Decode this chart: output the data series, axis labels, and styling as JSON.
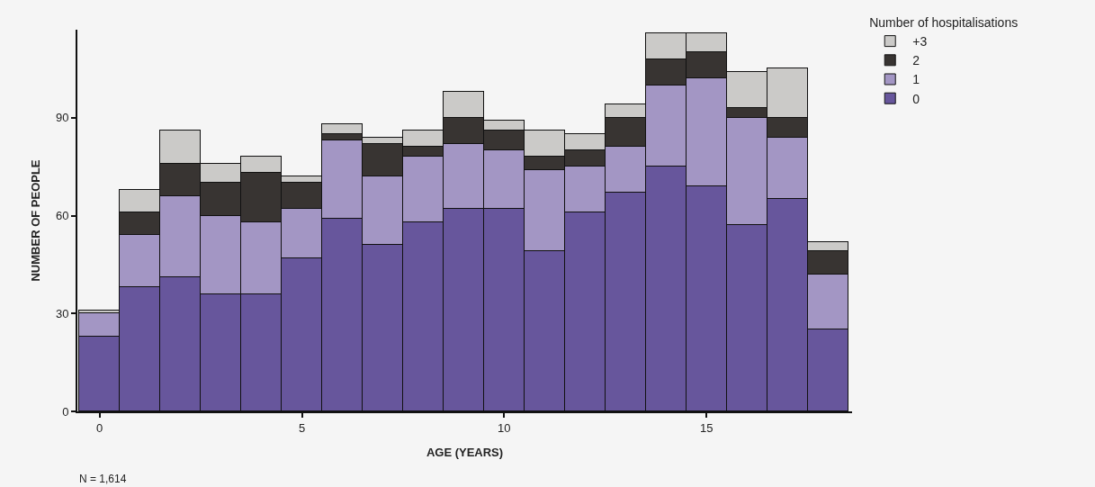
{
  "chart_data": {
    "type": "bar",
    "stacked": true,
    "xlabel": "AGE (YEARS)",
    "ylabel": "NUMBER OF PEOPLE",
    "legend_title": "Number of hospitalisations",
    "legend": "top right",
    "grid": false,
    "x": [
      0,
      1,
      2,
      3,
      4,
      5,
      6,
      7,
      8,
      9,
      10,
      11,
      12,
      13,
      14,
      15,
      16,
      17,
      18
    ],
    "xlim": [
      -0.55,
      18.6
    ],
    "xticks": [
      0,
      5,
      10,
      15
    ],
    "ylim": [
      0,
      117
    ],
    "yticks": [
      0,
      30,
      60,
      90
    ],
    "series": [
      {
        "name": "0",
        "color": "#67569c",
        "values": [
          23,
          38,
          41,
          36,
          36,
          47,
          59,
          51,
          58,
          62,
          62,
          49,
          61,
          67,
          75,
          69,
          57,
          65,
          25
        ]
      },
      {
        "name": "1",
        "color": "#a396c4",
        "values": [
          7,
          16,
          25,
          24,
          22,
          15,
          24,
          21,
          20,
          20,
          18,
          25,
          14,
          14,
          25,
          33,
          33,
          19,
          17
        ]
      },
      {
        "name": "2",
        "color": "#383432",
        "values": [
          0,
          7,
          10,
          10,
          15,
          8,
          2,
          10,
          3,
          8,
          6,
          4,
          5,
          9,
          8,
          8,
          3,
          6,
          7
        ]
      },
      {
        "name": "+3",
        "color": "#cbcac8",
        "values": [
          1,
          7,
          10,
          6,
          5,
          2,
          3,
          2,
          5,
          8,
          3,
          8,
          5,
          4,
          8,
          6,
          11,
          15,
          3
        ]
      }
    ],
    "annotations": [
      "N = 1,614"
    ]
  }
}
